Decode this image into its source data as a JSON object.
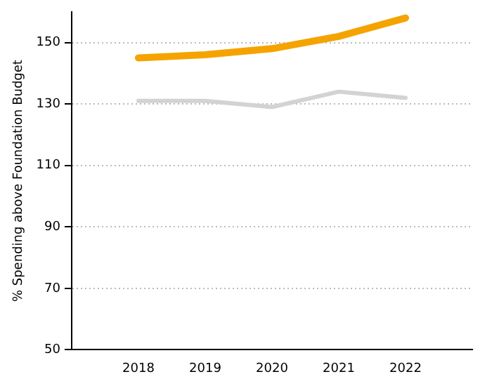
{
  "chart_data": {
    "type": "line",
    "ylabel": "% Spending above Foundation Budget",
    "x": [
      2018,
      2019,
      2020,
      2021,
      2022
    ],
    "series": [
      {
        "color": "#f5a300",
        "values": [
          145,
          146,
          148,
          152,
          158
        ]
      },
      {
        "color": "#d3d3d3",
        "values": [
          131,
          131,
          129,
          134,
          132
        ]
      }
    ],
    "xlim": [
      2017,
      2023
    ],
    "xticks": [
      {
        "value": 2017,
        "label": null
      },
      2018,
      2019,
      2020,
      2021,
      2022
    ],
    "ylim": [
      50,
      160
    ],
    "yticks": [
      50,
      70,
      90,
      110,
      130,
      150
    ],
    "grid": "y",
    "legend": false,
    "marker": "none",
    "line_style": "solid"
  }
}
